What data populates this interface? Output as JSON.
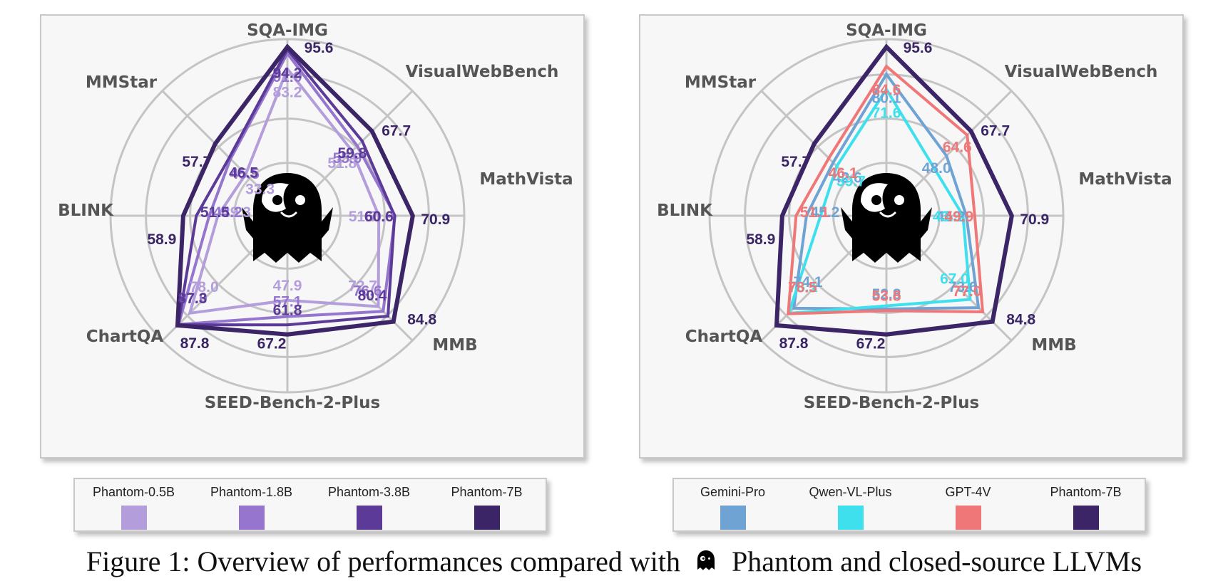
{
  "colors": {
    "phantom_0_5b": "#b39ddb",
    "phantom_1_8b": "#9575cd",
    "phantom_3_8b": "#5b3a98",
    "phantom_7b": "#3b2566",
    "gemini_pro": "#6fa3d4",
    "qwen_vl_plus": "#3fe0ee",
    "gpt_4v": "#f07777",
    "axis_label": "#555555",
    "grid": "#c4c4c4"
  },
  "chart_data": [
    {
      "type": "radar",
      "axes": [
        "SQA-IMG",
        "VisualWebBench",
        "MathVista",
        "MMB",
        "SEED-Bench-2-Plus",
        "ChartQA",
        "BLINK",
        "MMStar"
      ],
      "series": [
        {
          "name": "Phantom-0.5B",
          "color": "#b39ddb",
          "values": [
            83.2,
            51.8,
            51.7,
            72.7,
            47.9,
            78.0,
            39.3,
            33.3
          ]
        },
        {
          "name": "Phantom-1.8B",
          "color": "#9575cd",
          "values": [
            91.9,
            55.9,
            60.9,
            76.6,
            57.1,
            87.0,
            44.2,
            45.5
          ]
        },
        {
          "name": "Phantom-3.8B",
          "color": "#5b3a98",
          "values": [
            94.2,
            59.8,
            60.6,
            80.4,
            61.8,
            87.3,
            51.5,
            46.5
          ]
        },
        {
          "name": "Phantom-7B",
          "color": "#3b2566",
          "values": [
            95.6,
            67.7,
            70.9,
            84.8,
            67.2,
            87.8,
            58.9,
            57.7
          ]
        }
      ]
    },
    {
      "type": "radar",
      "axes": [
        "SQA-IMG",
        "VisualWebBench",
        "MathVista",
        "MMB",
        "SEED-Bench-2-Plus",
        "ChartQA",
        "BLINK",
        "MMStar"
      ],
      "series": [
        {
          "name": "Gemini-Pro",
          "color": "#6fa3d4",
          "values": [
            80.1,
            48.0,
            45.2,
            73.6,
            52.8,
            74.1,
            45.2,
            42.6
          ]
        },
        {
          "name": "Qwen-VL-Plus",
          "color": "#3fe0ee",
          "values": [
            71.6,
            null,
            43.3,
            67.0,
            null,
            78.1,
            null,
            39.7
          ]
        },
        {
          "name": "GPT-4V",
          "color": "#f07777",
          "values": [
            84.6,
            64.6,
            49.9,
            77.0,
            53.8,
            78.5,
            51.1,
            46.1
          ]
        },
        {
          "name": "Phantom-7B",
          "color": "#3b2566",
          "values": [
            95.6,
            67.7,
            70.9,
            84.8,
            67.2,
            87.8,
            58.9,
            57.7
          ]
        }
      ]
    }
  ],
  "caption": {
    "prefix": "Figure 1: Overview of performances compared with",
    "suffix": "Phantom and closed-source LLVMs"
  }
}
